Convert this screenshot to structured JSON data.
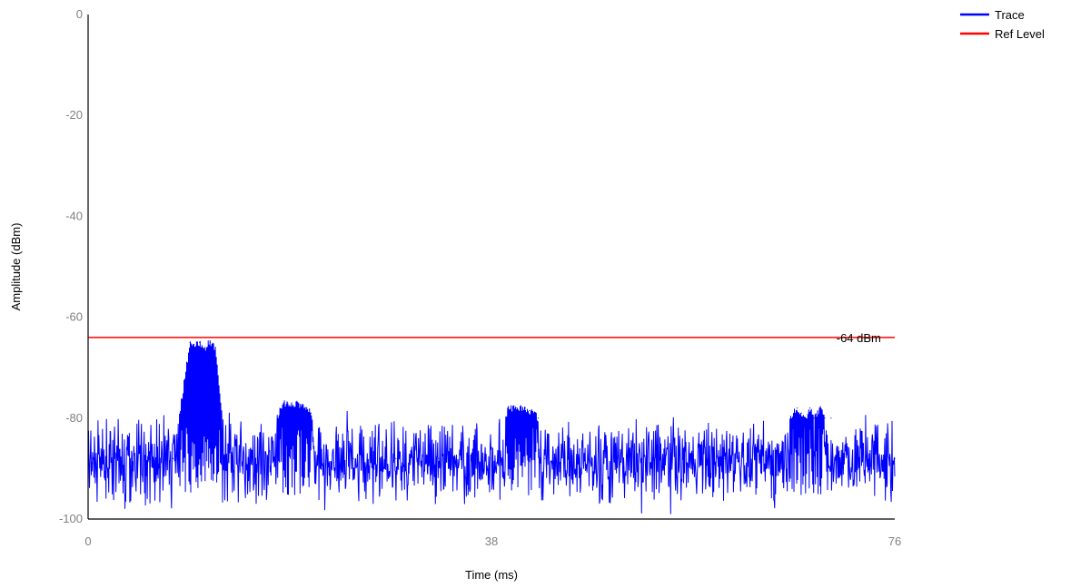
{
  "chart_data": {
    "type": "line",
    "xlabel": "Time (ms)",
    "ylabel": "Amplitude (dBm)",
    "xlim": [
      0,
      76
    ],
    "ylim": [
      -100,
      0
    ],
    "x_ticks": [
      0,
      38,
      76
    ],
    "y_ticks": [
      0,
      -20,
      -40,
      -60,
      -80,
      -100
    ],
    "grid": false,
    "legend_position": "top-right",
    "series": [
      {
        "name": "Trace",
        "color": "#0000ff",
        "x": [
          0,
          4,
          8,
          9.6,
          10,
          10.5,
          11,
          11.5,
          12,
          13,
          16,
          18.4,
          18.8,
          19.2,
          19.6,
          20,
          20.5,
          21,
          22,
          25,
          29,
          33,
          38,
          39.6,
          40,
          40.4,
          40.8,
          41.2,
          41.6,
          42,
          42.4,
          43,
          46,
          50,
          55,
          60,
          63,
          66.8,
          67.2,
          67.6,
          68,
          68.4,
          69,
          69.4,
          70,
          72,
          74,
          75.5,
          76
        ],
        "values": [
          -88,
          -88,
          -88,
          -65,
          -66,
          -65,
          -66,
          -65,
          -66,
          -88,
          -88,
          -77,
          -77,
          -77.5,
          -77,
          -77.5,
          -78,
          -79,
          -88,
          -88,
          -88,
          -88,
          -88,
          -78,
          -78,
          -78,
          -78,
          -78,
          -78.5,
          -79,
          -80,
          -88,
          -88,
          -88,
          -88,
          -88,
          -88,
          -78,
          -79,
          -80,
          -78,
          -80,
          -78,
          -80,
          -80,
          -88,
          -88,
          -88,
          -88
        ],
        "noise_band": [
          -97,
          -80
        ]
      },
      {
        "name": "Ref Level",
        "color": "#ff0000",
        "x": [
          0,
          76
        ],
        "values": [
          -64,
          -64
        ]
      }
    ],
    "annotations": [
      {
        "text": "-64 dBm",
        "x": 70.5,
        "y": -64
      }
    ]
  }
}
